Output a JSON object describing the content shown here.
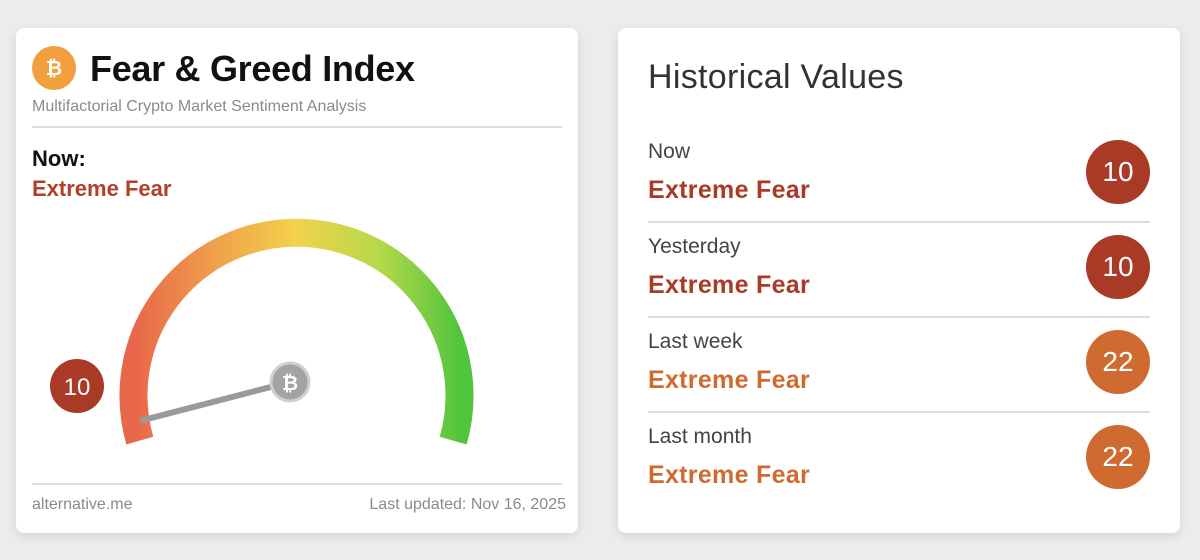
{
  "fear_greed": {
    "logo_icon": "bitcoin-icon",
    "title": "Fear & Greed Index",
    "subtitle": "Multifactorial Crypto Market Sentiment Analysis",
    "now_label": "Now:",
    "now_value": "Extreme Fear",
    "now_value_color": "#b0402a",
    "gauge": {
      "value": 10,
      "value_label": "10",
      "min": 0,
      "max": 100,
      "colors": [
        "#e8664a",
        "#f0a04a",
        "#f2d24c",
        "#b6d94a",
        "#52c43e"
      ],
      "badge_color": "#a83a26",
      "needle_icon": "bitcoin-icon"
    },
    "source": "alternative.me",
    "last_updated": "Last updated: Nov 16, 2025"
  },
  "historical": {
    "title": "Historical Values",
    "rows": [
      {
        "label": "Now",
        "value": "Extreme Fear",
        "score": "10",
        "value_color": "#a83a26",
        "badge_color": "#a83a26"
      },
      {
        "label": "Yesterday",
        "value": "Extreme Fear",
        "score": "10",
        "value_color": "#a83a26",
        "badge_color": "#a83a26"
      },
      {
        "label": "Last week",
        "value": "Extreme Fear",
        "score": "22",
        "value_color": "#cf6a30",
        "badge_color": "#cf6a30"
      },
      {
        "label": "Last month",
        "value": "Extreme Fear",
        "score": "22",
        "value_color": "#cf6a30",
        "badge_color": "#cf6a30"
      }
    ]
  }
}
